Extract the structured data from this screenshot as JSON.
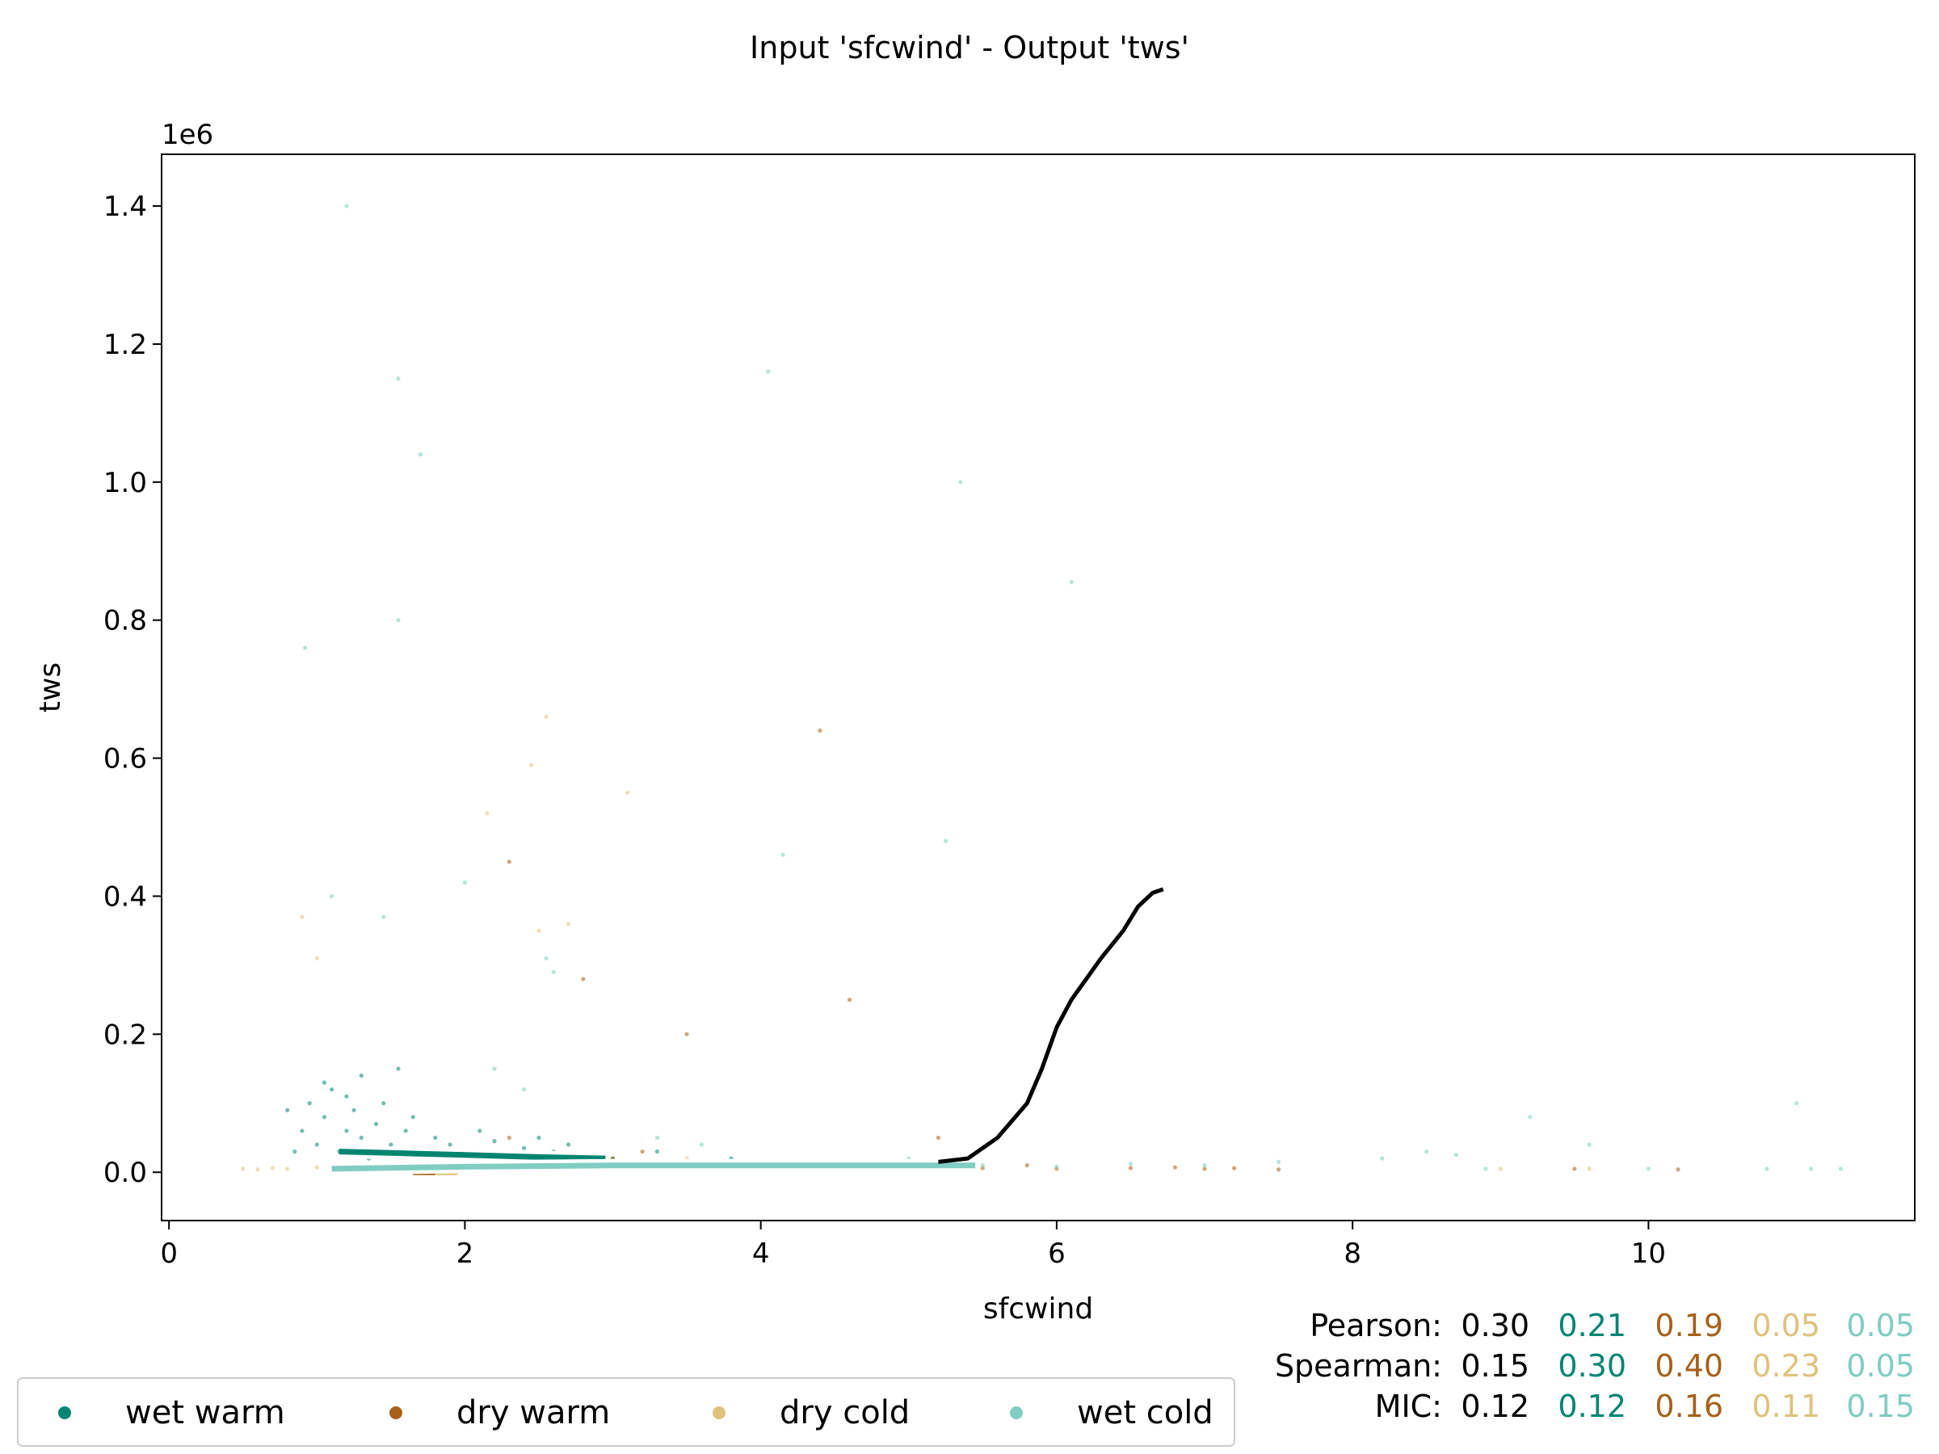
{
  "chart_data": {
    "type": "scatter",
    "title": "Input 'sfcwind' - Output 'tws'",
    "xlabel": "sfcwind",
    "ylabel": "tws",
    "y_offset_label": "1e6",
    "xlim": [
      -0.05,
      11.8
    ],
    "ylim": [
      -0.07,
      1.475
    ],
    "x_ticks": [
      0,
      2,
      4,
      6,
      8,
      10
    ],
    "x_tick_labels": [
      "0",
      "2",
      "4",
      "6",
      "8",
      "10"
    ],
    "y_ticks": [
      0.0,
      0.2,
      0.4,
      0.6,
      0.8,
      1.0,
      1.2,
      1.4
    ],
    "y_tick_labels": [
      "0.0",
      "0.2",
      "0.4",
      "0.6",
      "0.8",
      "1.0",
      "1.2",
      "1.4"
    ],
    "grid": false,
    "legend_position": "bottom-left",
    "colors": {
      "wet warm": "#018571",
      "dry warm": "#a6611a",
      "dry cold": "#dfc27d",
      "wet cold": "#80cdc1",
      "overall": "#000000"
    },
    "series": [
      {
        "name": "wet warm",
        "color": "#018571",
        "points": [
          [
            0.95,
            0.1
          ],
          [
            1.05,
            0.08
          ],
          [
            1.1,
            0.12
          ],
          [
            1.2,
            0.06
          ],
          [
            1.25,
            0.09
          ],
          [
            1.3,
            0.05
          ],
          [
            1.4,
            0.07
          ],
          [
            1.5,
            0.04
          ],
          [
            1.6,
            0.06
          ],
          [
            1.7,
            0.03
          ],
          [
            1.8,
            0.05
          ],
          [
            1.9,
            0.04
          ],
          [
            2.0,
            0.03
          ],
          [
            2.2,
            0.045
          ],
          [
            2.4,
            0.035
          ],
          [
            2.6,
            0.03
          ],
          [
            2.8,
            0.025
          ],
          [
            3.0,
            0.02
          ],
          [
            3.3,
            0.03
          ],
          [
            3.6,
            0.015
          ],
          [
            1.0,
            0.04
          ],
          [
            1.15,
            0.03
          ],
          [
            1.35,
            0.02
          ],
          [
            0.9,
            0.06
          ],
          [
            1.45,
            0.1
          ],
          [
            1.55,
            0.15
          ],
          [
            2.1,
            0.06
          ],
          [
            2.5,
            0.05
          ],
          [
            1.2,
            0.11
          ],
          [
            0.85,
            0.03
          ],
          [
            1.65,
            0.08
          ],
          [
            1.75,
            0.02
          ],
          [
            2.3,
            0.025
          ],
          [
            2.7,
            0.04
          ],
          [
            3.1,
            0.01
          ],
          [
            1.05,
            0.13
          ],
          [
            0.8,
            0.09
          ],
          [
            1.3,
            0.14
          ],
          [
            3.8,
            0.02
          ],
          [
            4.2,
            0.01
          ]
        ],
        "curve": [
          [
            1.15,
            0.03
          ],
          [
            1.5,
            0.028
          ],
          [
            2.0,
            0.025
          ],
          [
            2.5,
            0.022
          ],
          [
            2.95,
            0.02
          ]
        ]
      },
      {
        "name": "dry warm",
        "color": "#a6611a",
        "points": [
          [
            1.7,
            0.01
          ],
          [
            2.3,
            0.05
          ],
          [
            3.0,
            0.02
          ],
          [
            3.5,
            0.015
          ],
          [
            4.0,
            0.01
          ],
          [
            4.5,
            0.01
          ],
          [
            5.0,
            0.008
          ],
          [
            5.5,
            0.006
          ],
          [
            6.0,
            0.005
          ],
          [
            6.5,
            0.006
          ],
          [
            7.0,
            0.005
          ],
          [
            7.5,
            0.004
          ],
          [
            4.4,
            0.64
          ],
          [
            2.3,
            0.45
          ],
          [
            2.8,
            0.28
          ],
          [
            3.5,
            0.2
          ],
          [
            4.6,
            0.25
          ],
          [
            5.2,
            0.05
          ],
          [
            6.8,
            0.007
          ],
          [
            7.2,
            0.006
          ],
          [
            9.5,
            0.005
          ],
          [
            10.2,
            0.004
          ],
          [
            3.2,
            0.03
          ],
          [
            4.8,
            0.015
          ],
          [
            5.8,
            0.01
          ]
        ],
        "curve": [
          [
            1.65,
            0.0
          ],
          [
            1.8,
            0.0
          ]
        ]
      },
      {
        "name": "dry cold",
        "color": "#dfc27d",
        "points": [
          [
            0.5,
            0.005
          ],
          [
            0.6,
            0.004
          ],
          [
            0.7,
            0.006
          ],
          [
            0.8,
            0.005
          ],
          [
            1.0,
            0.007
          ],
          [
            1.3,
            0.006
          ],
          [
            1.6,
            0.005
          ],
          [
            2.0,
            0.008
          ],
          [
            2.5,
            0.35
          ],
          [
            2.7,
            0.36
          ],
          [
            2.15,
            0.52
          ],
          [
            3.1,
            0.55
          ],
          [
            2.55,
            0.66
          ],
          [
            2.45,
            0.59
          ],
          [
            0.9,
            0.37
          ],
          [
            1.0,
            0.31
          ],
          [
            9.0,
            0.005
          ],
          [
            9.6,
            0.005
          ],
          [
            3.5,
            0.02
          ],
          [
            5.0,
            0.01
          ],
          [
            1.9,
            0.0
          ]
        ],
        "curve": [
          [
            1.8,
            0.0
          ],
          [
            1.95,
            0.0
          ]
        ]
      },
      {
        "name": "wet cold",
        "color": "#80cdc1",
        "points": [
          [
            1.2,
            1.4
          ],
          [
            1.55,
            1.15
          ],
          [
            1.7,
            1.04
          ],
          [
            4.05,
            1.16
          ],
          [
            5.35,
            1.0
          ],
          [
            6.1,
            0.855
          ],
          [
            1.55,
            0.8
          ],
          [
            0.92,
            0.76
          ],
          [
            1.1,
            0.4
          ],
          [
            2.0,
            0.42
          ],
          [
            1.45,
            0.37
          ],
          [
            5.25,
            0.48
          ],
          [
            4.15,
            0.46
          ],
          [
            2.55,
            0.31
          ],
          [
            2.6,
            0.29
          ],
          [
            5.5,
            0.01
          ],
          [
            6.0,
            0.008
          ],
          [
            6.5,
            0.012
          ],
          [
            7.0,
            0.01
          ],
          [
            7.5,
            0.015
          ],
          [
            8.2,
            0.02
          ],
          [
            8.5,
            0.03
          ],
          [
            8.7,
            0.025
          ],
          [
            9.2,
            0.08
          ],
          [
            9.6,
            0.04
          ],
          [
            10.0,
            0.005
          ],
          [
            10.8,
            0.005
          ],
          [
            11.0,
            0.1
          ],
          [
            11.1,
            0.005
          ],
          [
            11.3,
            0.005
          ],
          [
            8.9,
            0.005
          ],
          [
            3.3,
            0.05
          ],
          [
            3.6,
            0.04
          ],
          [
            4.5,
            0.01
          ],
          [
            5.0,
            0.02
          ],
          [
            1.8,
            0.02
          ],
          [
            2.2,
            0.15
          ],
          [
            2.4,
            0.12
          ]
        ],
        "curve": [
          [
            1.1,
            0.005
          ],
          [
            2.0,
            0.008
          ],
          [
            3.0,
            0.01
          ],
          [
            4.0,
            0.01
          ],
          [
            5.0,
            0.01
          ],
          [
            5.45,
            0.01
          ]
        ]
      },
      {
        "name": "overall",
        "color": "#000000",
        "points": [],
        "curve": [
          [
            5.2,
            0.015
          ],
          [
            5.4,
            0.02
          ],
          [
            5.6,
            0.05
          ],
          [
            5.8,
            0.1
          ],
          [
            5.9,
            0.15
          ],
          [
            6.0,
            0.21
          ],
          [
            6.1,
            0.25
          ],
          [
            6.2,
            0.28
          ],
          [
            6.3,
            0.31
          ],
          [
            6.45,
            0.35
          ],
          [
            6.55,
            0.385
          ],
          [
            6.65,
            0.405
          ],
          [
            6.72,
            0.41
          ]
        ]
      }
    ],
    "stats": [
      {
        "label": "Pearson:",
        "values": [
          "0.30",
          "0.21",
          "0.19",
          "0.05",
          "0.05"
        ]
      },
      {
        "label": "Spearman:",
        "values": [
          "0.15",
          "0.30",
          "0.40",
          "0.23",
          "0.05"
        ]
      },
      {
        "label": "MIC:",
        "values": [
          "0.12",
          "0.12",
          "0.16",
          "0.11",
          "0.15"
        ]
      }
    ],
    "stat_colors": [
      "#000000",
      "#018571",
      "#a6611a",
      "#dfc27d",
      "#80cdc1"
    ],
    "legend": [
      "wet warm",
      "dry warm",
      "dry cold",
      "wet cold"
    ]
  }
}
